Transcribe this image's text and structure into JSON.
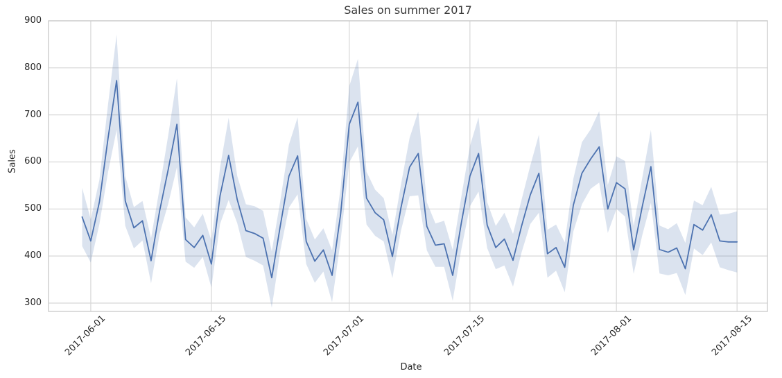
{
  "chart_data": {
    "type": "line",
    "title": "Sales on summer 2017",
    "xlabel": "Date",
    "ylabel": "Sales",
    "grid": true,
    "legend": false,
    "ylim": [
      282,
      900
    ],
    "y_ticks": [
      900,
      800,
      700,
      600,
      500,
      400,
      300
    ],
    "x_tick_labels": [
      "2017-06-01",
      "2017-06-15",
      "2017-07-01",
      "2017-07-15",
      "2017-08-01",
      "2017-08-15"
    ],
    "colors": {
      "line": "#4c72b0",
      "band_fill": "#4c72b0",
      "band_opacity": 0.2,
      "grid": "#d7d7d7",
      "spine": "#c8c8c8",
      "text": "#262626",
      "background": "#ffffff"
    },
    "series": [
      {
        "name": "Sales",
        "dates": [
          "2017-05-31",
          "2017-06-01",
          "2017-06-02",
          "2017-06-03",
          "2017-06-04",
          "2017-06-05",
          "2017-06-06",
          "2017-06-07",
          "2017-06-08",
          "2017-06-09",
          "2017-06-10",
          "2017-06-11",
          "2017-06-12",
          "2017-06-13",
          "2017-06-14",
          "2017-06-15",
          "2017-06-16",
          "2017-06-17",
          "2017-06-18",
          "2017-06-19",
          "2017-06-20",
          "2017-06-21",
          "2017-06-22",
          "2017-06-23",
          "2017-06-24",
          "2017-06-25",
          "2017-06-26",
          "2017-06-27",
          "2017-06-28",
          "2017-06-29",
          "2017-06-30",
          "2017-07-01",
          "2017-07-02",
          "2017-07-03",
          "2017-07-04",
          "2017-07-05",
          "2017-07-06",
          "2017-07-07",
          "2017-07-08",
          "2017-07-09",
          "2017-07-10",
          "2017-07-11",
          "2017-07-12",
          "2017-07-13",
          "2017-07-14",
          "2017-07-15",
          "2017-07-16",
          "2017-07-17",
          "2017-07-18",
          "2017-07-19",
          "2017-07-20",
          "2017-07-21",
          "2017-07-22",
          "2017-07-23",
          "2017-07-24",
          "2017-07-25",
          "2017-07-26",
          "2017-07-27",
          "2017-07-28",
          "2017-07-29",
          "2017-07-30",
          "2017-07-31",
          "2017-08-01",
          "2017-08-02",
          "2017-08-03",
          "2017-08-04",
          "2017-08-05",
          "2017-08-06",
          "2017-08-07",
          "2017-08-08",
          "2017-08-09",
          "2017-08-10",
          "2017-08-11",
          "2017-08-12",
          "2017-08-13",
          "2017-08-14",
          "2017-08-15"
        ],
        "values": [
          483,
          432,
          515,
          650,
          773,
          517,
          460,
          475,
          390,
          497,
          585,
          680,
          435,
          418,
          444,
          383,
          528,
          614,
          520,
          454,
          448,
          438,
          354,
          465,
          570,
          613,
          431,
          389,
          413,
          359,
          490,
          680,
          727,
          523,
          492,
          477,
          399,
          503,
          589,
          618,
          463,
          423,
          426,
          359,
          470,
          570,
          618,
          466,
          418,
          436,
          391,
          464,
          530,
          576,
          405,
          418,
          376,
          508,
          576,
          606,
          632,
          500,
          556,
          543,
          413,
          505,
          590,
          414,
          408,
          417,
          373,
          467,
          455,
          488,
          432,
          430,
          430
        ],
        "ci_low": [
          421,
          386,
          468,
          578,
          668,
          464,
          416,
          433,
          342,
          448,
          512,
          589,
          388,
          375,
          398,
          333,
          468,
          519,
          470,
          398,
          390,
          380,
          290,
          412,
          503,
          531,
          383,
          343,
          367,
          302,
          434,
          599,
          633,
          467,
          443,
          431,
          353,
          454,
          527,
          529,
          412,
          377,
          377,
          305,
          414,
          506,
          537,
          417,
          372,
          380,
          335,
          408,
          468,
          492,
          354,
          369,
          323,
          452,
          510,
          543,
          556,
          449,
          500,
          484,
          362,
          444,
          513,
          363,
          359,
          364,
          317,
          416,
          402,
          429,
          376,
          370,
          365
        ],
        "ci_high": [
          545,
          478,
          562,
          722,
          871,
          570,
          504,
          517,
          438,
          546,
          658,
          778,
          482,
          461,
          490,
          433,
          588,
          694,
          570,
          510,
          506,
          496,
          410,
          518,
          637,
          695,
          479,
          435,
          459,
          412,
          546,
          761,
          819,
          579,
          541,
          523,
          445,
          552,
          651,
          707,
          514,
          469,
          475,
          413,
          526,
          634,
          695,
          515,
          464,
          492,
          447,
          520,
          592,
          658,
          456,
          467,
          429,
          564,
          642,
          669,
          708,
          551,
          612,
          602,
          464,
          566,
          668,
          465,
          457,
          470,
          428,
          518,
          508,
          547,
          488,
          490,
          495
        ]
      }
    ]
  }
}
